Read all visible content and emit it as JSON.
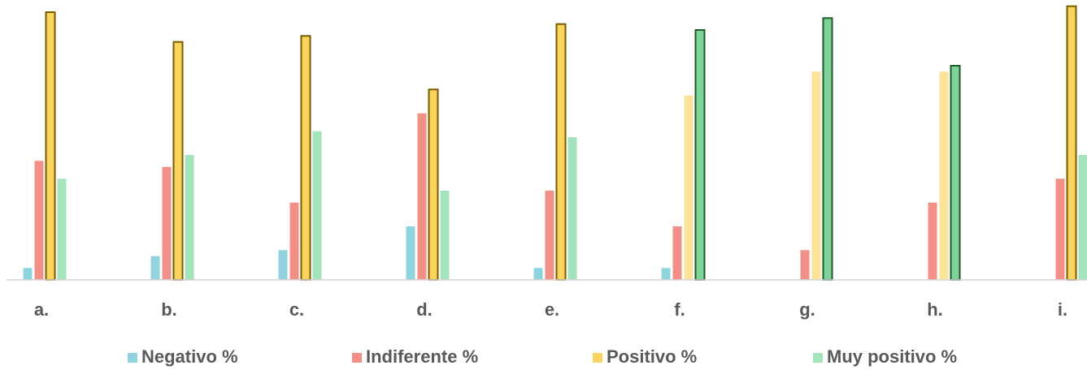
{
  "chart_data": {
    "type": "bar",
    "title": "",
    "xlabel": "",
    "ylabel": "",
    "ylim": [
      0,
      45
    ],
    "grid": false,
    "legend_position": "bottom",
    "categories": [
      "a.",
      "b.",
      "c.",
      "d.",
      "e.",
      "f.",
      "g.",
      "h.",
      "i."
    ],
    "series": [
      {
        "name": "Negativo %",
        "color": "#8fd3df",
        "values": [
          2,
          4,
          5,
          9,
          2,
          2,
          0,
          0,
          0
        ]
      },
      {
        "name": "Indiferente %",
        "color": "#f28f86",
        "values": [
          20,
          19,
          13,
          28,
          15,
          9,
          5,
          13,
          17
        ]
      },
      {
        "name": "Positivo %",
        "color": "#f9d45f",
        "colors": [
          "#f9d45f",
          "#f9d45f",
          "#f9d45f",
          "#f9d45f",
          "#f9d45f",
          "#fbe39a",
          "#fbe39a",
          "#fbe39a",
          "#f9d45f"
        ],
        "outlined": [
          true,
          true,
          true,
          true,
          true,
          false,
          false,
          false,
          true
        ],
        "values": [
          45,
          40,
          41,
          32,
          43,
          31,
          35,
          35,
          46
        ]
      },
      {
        "name": "Muy positivo %",
        "color": "#a4e4bd",
        "colors": [
          "#a4e4bd",
          "#a4e4bd",
          "#a4e4bd",
          "#a4e4bd",
          "#a4e4bd",
          "#7dd39a",
          "#7dd39a",
          "#7dd39a",
          "#a4e4bd"
        ],
        "outlined": [
          false,
          false,
          false,
          false,
          false,
          true,
          true,
          true,
          false
        ],
        "values": [
          17,
          21,
          25,
          15,
          24,
          42,
          44,
          36,
          21
        ]
      }
    ],
    "outline_colors": {
      "Positivo %": "#7a5b00",
      "Muy positivo %": "#1f5a2b"
    }
  }
}
